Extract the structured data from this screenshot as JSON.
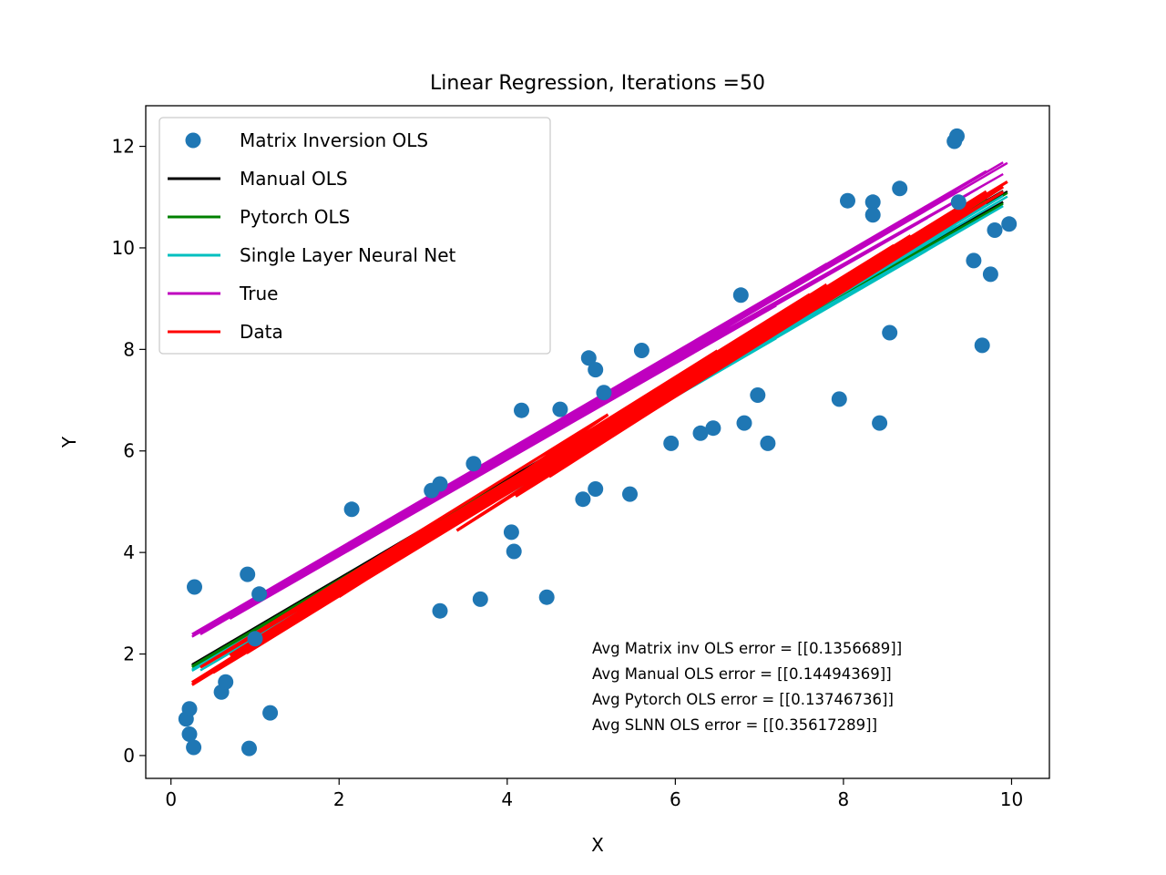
{
  "chart_data": {
    "type": "scatter",
    "title": "Linear Regression, Iterations =50",
    "xlabel": "X",
    "ylabel": "Y",
    "xlim": [
      -0.3,
      10.45
    ],
    "ylim": [
      -0.45,
      12.8
    ],
    "xticks": [
      0,
      2,
      4,
      6,
      8,
      10
    ],
    "yticks": [
      0,
      2,
      4,
      6,
      8,
      10,
      12
    ],
    "grid": false,
    "legend_position": "upper-left",
    "legend": [
      {
        "name": "Matrix Inversion OLS",
        "kind": "marker",
        "color": "#1f77b4"
      },
      {
        "name": "Manual OLS",
        "kind": "line",
        "color": "#000000"
      },
      {
        "name": "Pytorch OLS",
        "kind": "line",
        "color": "#008000"
      },
      {
        "name": "Single Layer Neural Net",
        "kind": "line",
        "color": "#00bfbf"
      },
      {
        "name": "True",
        "kind": "line",
        "color": "#bf00bf"
      },
      {
        "name": "Data",
        "kind": "line",
        "color": "#ff0000"
      }
    ],
    "annotations": [
      "Avg Matrix inv OLS error = [[0.1356689]]",
      "Avg Manual OLS error = [[0.14494369]]",
      "Avg Pytorch OLS error = [[0.13746736]]",
      "Avg SLNN OLS error = [[0.35617289]]"
    ],
    "points": [
      {
        "x": 0.18,
        "y": 0.72
      },
      {
        "x": 0.22,
        "y": 0.92
      },
      {
        "x": 0.22,
        "y": 0.42
      },
      {
        "x": 0.27,
        "y": 0.16
      },
      {
        "x": 0.28,
        "y": 3.32
      },
      {
        "x": 0.6,
        "y": 1.25
      },
      {
        "x": 0.65,
        "y": 1.45
      },
      {
        "x": 0.91,
        "y": 3.57
      },
      {
        "x": 0.93,
        "y": 0.14
      },
      {
        "x": 1.0,
        "y": 2.3
      },
      {
        "x": 1.05,
        "y": 3.18
      },
      {
        "x": 1.18,
        "y": 0.84
      },
      {
        "x": 2.15,
        "y": 4.85
      },
      {
        "x": 3.1,
        "y": 5.22
      },
      {
        "x": 3.2,
        "y": 5.35
      },
      {
        "x": 3.2,
        "y": 2.85
      },
      {
        "x": 3.6,
        "y": 5.75
      },
      {
        "x": 3.68,
        "y": 3.08
      },
      {
        "x": 4.05,
        "y": 4.4
      },
      {
        "x": 4.08,
        "y": 4.02
      },
      {
        "x": 4.17,
        "y": 6.8
      },
      {
        "x": 4.47,
        "y": 3.12
      },
      {
        "x": 4.63,
        "y": 6.82
      },
      {
        "x": 4.9,
        "y": 5.05
      },
      {
        "x": 4.97,
        "y": 7.83
      },
      {
        "x": 5.05,
        "y": 7.6
      },
      {
        "x": 5.05,
        "y": 5.25
      },
      {
        "x": 5.15,
        "y": 7.15
      },
      {
        "x": 5.46,
        "y": 5.15
      },
      {
        "x": 5.6,
        "y": 7.98
      },
      {
        "x": 5.95,
        "y": 6.15
      },
      {
        "x": 6.3,
        "y": 6.35
      },
      {
        "x": 6.45,
        "y": 6.45
      },
      {
        "x": 6.78,
        "y": 9.07
      },
      {
        "x": 6.82,
        "y": 6.55
      },
      {
        "x": 6.98,
        "y": 7.1
      },
      {
        "x": 7.1,
        "y": 6.15
      },
      {
        "x": 7.95,
        "y": 7.02
      },
      {
        "x": 8.05,
        "y": 10.93
      },
      {
        "x": 8.35,
        "y": 10.9
      },
      {
        "x": 8.35,
        "y": 10.65
      },
      {
        "x": 8.43,
        "y": 6.55
      },
      {
        "x": 8.55,
        "y": 8.33
      },
      {
        "x": 8.67,
        "y": 11.17
      },
      {
        "x": 9.32,
        "y": 12.1
      },
      {
        "x": 9.35,
        "y": 12.2
      },
      {
        "x": 9.37,
        "y": 10.9
      },
      {
        "x": 9.55,
        "y": 9.75
      },
      {
        "x": 9.65,
        "y": 8.08
      },
      {
        "x": 9.75,
        "y": 9.48
      },
      {
        "x": 9.8,
        "y": 10.35
      },
      {
        "x": 9.97,
        "y": 10.47
      }
    ],
    "line_x": [
      0.25,
      9.35,
      1.1,
      7.2,
      0.5,
      9.9,
      2.2,
      6.5,
      0.3,
      8.8,
      3.2,
      9.6,
      0.9,
      5.6,
      1.8,
      9.3,
      0.6,
      7.8,
      2.5,
      9.9,
      4.5,
      6.6,
      0.4,
      8.3,
      1.5,
      9.7,
      3.8,
      8.9,
      0.25,
      6.1,
      2.9,
      9.35,
      1.2,
      7.6,
      0.7,
      9.0,
      4.1,
      9.8,
      0.35,
      5.2,
      2.0,
      8.6,
      0.95,
      9.5,
      3.4,
      7.0,
      0.55,
      9.95
    ],
    "series": [
      {
        "name": "Manual OLS",
        "intercept": 1.45,
        "slope": 0.965,
        "dy": [
          0.1,
          0.16,
          -0.05,
          -0.1,
          0.08,
          0.12,
          -0.02,
          0.06
        ]
      },
      {
        "name": "Pytorch OLS",
        "intercept": 1.45,
        "slope": 0.965,
        "dy": [
          0.07,
          0.13,
          -0.08,
          -0.13,
          0.05,
          0.09,
          -0.05,
          0.03
        ]
      },
      {
        "name": "Single Layer Neural Net",
        "intercept": 1.45,
        "slope": 0.965,
        "dy": [
          0.0,
          0.06,
          -0.14,
          -0.18,
          -0.02,
          0.02,
          -0.11,
          -0.04
        ]
      },
      {
        "name": "True",
        "intercept": 1.9,
        "slope": 0.96,
        "dy": [
          0.25,
          0.3,
          0.12,
          0.05,
          0.2,
          0.28,
          0.15,
          0.22
        ]
      },
      {
        "name": "Data",
        "intercept": 1.45,
        "slope": 0.965,
        "dy": [
          -0.25,
          0.3,
          -0.15,
          0.2,
          -0.3,
          0.1,
          -0.05,
          0.25
        ]
      }
    ]
  }
}
